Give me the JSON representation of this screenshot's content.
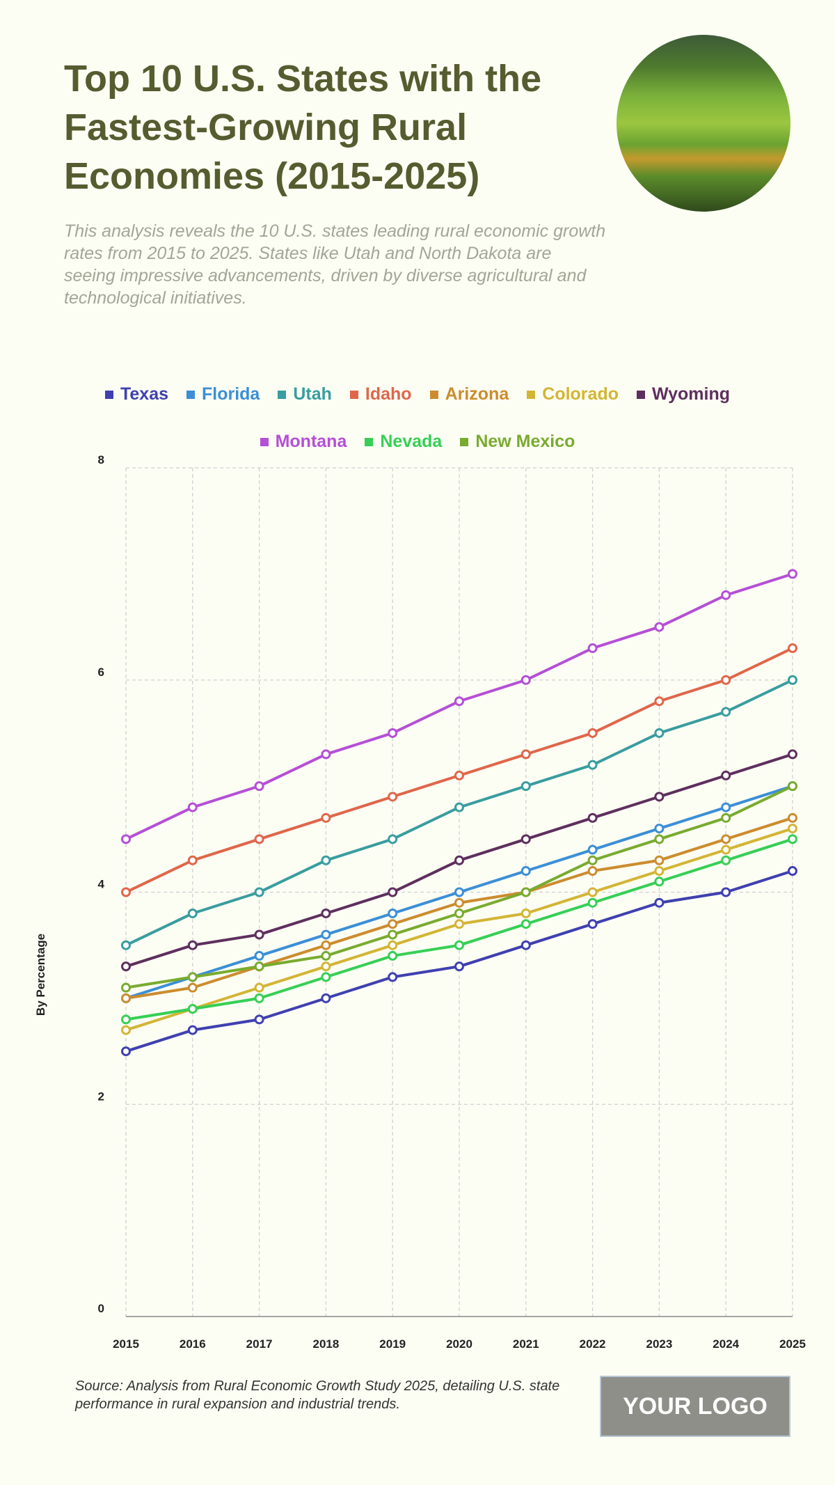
{
  "header": {
    "title": "Top 10 U.S. States with the Fastest-Growing Rural Economies (2015-2025)",
    "subtitle": "This analysis reveals the 10 U.S. states leading rural economic growth rates from 2015 to 2025. States like Utah and North Dakota are seeing impressive advancements, driven by diverse agricultural and technological initiatives."
  },
  "footer": {
    "source": "Source: Analysis from Rural Economic Growth Study 2025, detailing U.S. state performance in rural expansion and industrial trends.",
    "logo": "YOUR LOGO"
  },
  "chart_data": {
    "type": "line",
    "title": "",
    "xlabel": "",
    "ylabel": "By Percentage",
    "ylim": [
      0,
      8
    ],
    "yticks": [
      0,
      2,
      4,
      6,
      8
    ],
    "grid": true,
    "legend_position": "top",
    "x": [
      2015,
      2016,
      2017,
      2018,
      2019,
      2020,
      2021,
      2022,
      2023,
      2024,
      2025
    ],
    "series": [
      {
        "name": "Texas",
        "color": "#3f40b0",
        "values": [
          2.5,
          2.7,
          2.8,
          3.0,
          3.2,
          3.3,
          3.5,
          3.7,
          3.9,
          4.0,
          4.2
        ]
      },
      {
        "name": "Florida",
        "color": "#3b8fd6",
        "values": [
          3.0,
          3.2,
          3.4,
          3.6,
          3.8,
          4.0,
          4.2,
          4.4,
          4.6,
          4.8,
          5.0
        ]
      },
      {
        "name": "Utah",
        "color": "#399d9f",
        "values": [
          3.5,
          3.8,
          4.0,
          4.3,
          4.5,
          4.8,
          5.0,
          5.2,
          5.5,
          5.7,
          6.0
        ]
      },
      {
        "name": "Idaho",
        "color": "#e0664a",
        "values": [
          4.0,
          4.3,
          4.5,
          4.7,
          4.9,
          5.1,
          5.3,
          5.5,
          5.8,
          6.0,
          6.3
        ]
      },
      {
        "name": "Arizona",
        "color": "#cc8c2e",
        "values": [
          3.0,
          3.1,
          3.3,
          3.5,
          3.7,
          3.9,
          4.0,
          4.2,
          4.3,
          4.5,
          4.7
        ]
      },
      {
        "name": "Colorado",
        "color": "#d3b535",
        "values": [
          2.7,
          2.9,
          3.1,
          3.3,
          3.5,
          3.7,
          3.8,
          4.0,
          4.2,
          4.4,
          4.6
        ]
      },
      {
        "name": "Wyoming",
        "color": "#5e2f5e",
        "values": [
          3.3,
          3.5,
          3.6,
          3.8,
          4.0,
          4.3,
          4.5,
          4.7,
          4.9,
          5.1,
          5.3
        ]
      },
      {
        "name": "Montana",
        "color": "#b54fd6",
        "values": [
          4.5,
          4.8,
          5.0,
          5.3,
          5.5,
          5.8,
          6.0,
          6.3,
          6.5,
          6.8,
          7.0
        ]
      },
      {
        "name": "Nevada",
        "color": "#36cf55",
        "values": [
          2.8,
          2.9,
          3.0,
          3.2,
          3.4,
          3.5,
          3.7,
          3.9,
          4.1,
          4.3,
          4.5
        ]
      },
      {
        "name": "New Mexico",
        "color": "#79ab2f",
        "values": [
          3.1,
          3.2,
          3.3,
          3.4,
          3.6,
          3.8,
          4.0,
          4.3,
          4.5,
          4.7,
          5.0
        ]
      }
    ]
  }
}
